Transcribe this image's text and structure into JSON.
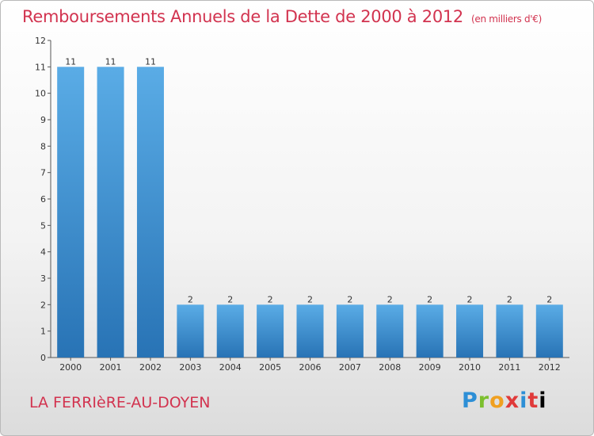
{
  "header": {
    "title": "Remboursements Annuels de la Dette de 2000 à 2012",
    "unit": "(en milliers d'€)"
  },
  "footer": {
    "commune": "LA FERRIèRE-AU-DOYEN",
    "logo": "Proxiti"
  },
  "colors": {
    "title": "#d2334f",
    "bar_top": "#5aace6",
    "bar_bottom": "#2873b5"
  },
  "chart_data": {
    "type": "bar",
    "title": "Remboursements Annuels de la Dette de 2000 à 2012",
    "xlabel": "",
    "ylabel": "",
    "ylim": [
      0,
      12
    ],
    "yticks": [
      0,
      1,
      2,
      3,
      4,
      5,
      6,
      7,
      8,
      9,
      10,
      11,
      12
    ],
    "grid": false,
    "categories": [
      "2000",
      "2001",
      "2002",
      "2003",
      "2004",
      "2005",
      "2006",
      "2007",
      "2008",
      "2009",
      "2010",
      "2011",
      "2012"
    ],
    "values": [
      11,
      11,
      11,
      2,
      2,
      2,
      2,
      2,
      2,
      2,
      2,
      2,
      2
    ],
    "data_labels": [
      "11",
      "11",
      "11",
      "2",
      "2",
      "2",
      "2",
      "2",
      "2",
      "2",
      "2",
      "2",
      "2"
    ]
  }
}
